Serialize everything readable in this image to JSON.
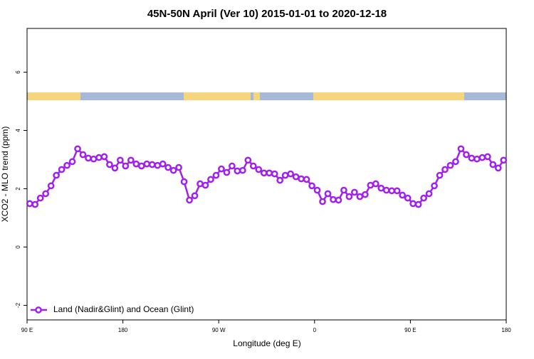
{
  "chart_data": {
    "type": "line",
    "title": "45N-50N April (Ver 10)   2015-01-01 to 2020-12-18",
    "x_label": "Longitude (deg E)",
    "y_label": "XCO2 - MLO trend (ppm)",
    "xlim": [
      90,
      540
    ],
    "xticks": [
      {
        "value": 90,
        "label": "90 E"
      },
      {
        "value": 180,
        "label": "180"
      },
      {
        "value": 270,
        "label": "90 W"
      },
      {
        "value": 360,
        "label": "0"
      },
      {
        "value": 450,
        "label": "90 E"
      },
      {
        "value": 540,
        "label": "180"
      }
    ],
    "ylim": [
      -2.5,
      7.5
    ],
    "yticks": [
      -2,
      0,
      2,
      4,
      6
    ],
    "legend_position": "bottom-left",
    "x": [
      92.5,
      97.5,
      102.5,
      107.5,
      112.5,
      117.5,
      122.5,
      127.5,
      132.5,
      137.5,
      142.5,
      147.5,
      152.5,
      157.5,
      162.5,
      167.5,
      172.5,
      177.5,
      182.5,
      187.5,
      192.5,
      197.5,
      202.5,
      207.5,
      212.5,
      217.5,
      222.5,
      227.5,
      232.5,
      237.5,
      242.5,
      247.5,
      252.5,
      257.5,
      262.5,
      267.5,
      272.5,
      277.5,
      282.5,
      287.5,
      292.5,
      297.5,
      302.5,
      307.5,
      312.5,
      317.5,
      322.5,
      327.5,
      332.5,
      337.5,
      342.5,
      347.5,
      352.5,
      357.5,
      362.5,
      367.5,
      372.5,
      377.5,
      382.5,
      387.5,
      392.5,
      397.5,
      402.5,
      407.5,
      412.5,
      417.5,
      422.5,
      427.5,
      432.5,
      437.5,
      442.5,
      447.5,
      452.5,
      457.5,
      462.5,
      467.5,
      472.5,
      477.5,
      482.5,
      487.5,
      492.5,
      497.5,
      502.5,
      507.5,
      512.5,
      517.5,
      522.5,
      527.5,
      532.5,
      537.5
    ],
    "series": [
      {
        "name": "Land (Nadir&Glint) and Ocean (Glint)",
        "color": "#a020f0",
        "values": [
          1.49,
          1.46,
          1.68,
          1.83,
          2.1,
          2.46,
          2.66,
          2.8,
          2.93,
          3.37,
          3.17,
          3.05,
          3.02,
          3.07,
          3.1,
          2.83,
          2.71,
          2.98,
          2.78,
          2.98,
          2.85,
          2.78,
          2.85,
          2.83,
          2.8,
          2.85,
          2.73,
          2.63,
          2.73,
          2.24,
          1.61,
          1.76,
          2.17,
          2.12,
          2.32,
          2.46,
          2.68,
          2.56,
          2.78,
          2.61,
          2.63,
          2.98,
          2.78,
          2.66,
          2.54,
          2.54,
          2.51,
          2.29,
          2.46,
          2.51,
          2.41,
          2.34,
          2.32,
          2.1,
          1.95,
          1.56,
          1.83,
          1.63,
          1.61,
          1.95,
          1.73,
          1.88,
          1.73,
          1.8,
          2.12,
          2.17,
          2.02,
          1.95,
          1.93,
          1.93,
          1.78,
          1.68,
          1.49,
          1.46,
          1.68,
          1.83,
          2.1,
          2.46,
          2.66,
          2.8,
          2.93,
          3.37,
          3.17,
          3.05,
          3.02,
          3.07,
          3.1,
          2.83,
          2.71,
          2.98
        ]
      }
    ]
  }
}
